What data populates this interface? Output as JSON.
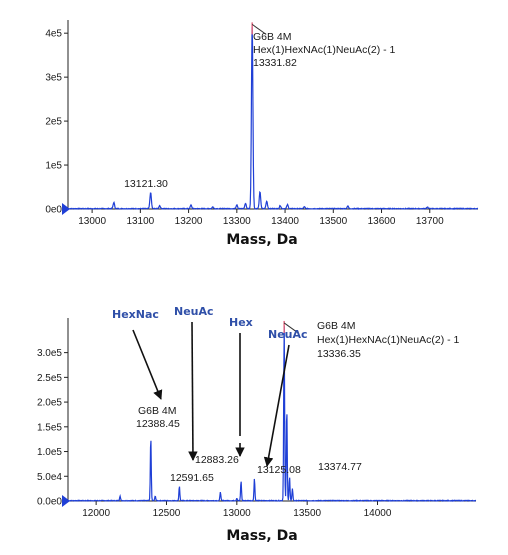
{
  "chart_data": [
    {
      "type": "line",
      "xlabel": "Mass, Da",
      "xlim": [
        12950,
        13800
      ],
      "ylim": [
        0,
        430000
      ],
      "x_ticks": [
        "13000",
        "13100",
        "13200",
        "13300",
        "13400",
        "13500",
        "13600",
        "13700"
      ],
      "y_ticks": [
        "0e0",
        "1e5",
        "2e5",
        "3e5",
        "4e5"
      ],
      "grid": false,
      "series": [
        {
          "peaks": [
            {
              "x": 13045,
              "y": 14000
            },
            {
              "x": 13121.3,
              "y": 37000
            },
            {
              "x": 13140,
              "y": 7000
            },
            {
              "x": 13205,
              "y": 8000
            },
            {
              "x": 13250,
              "y": 4000
            },
            {
              "x": 13300,
              "y": 9000
            },
            {
              "x": 13318,
              "y": 12000
            },
            {
              "x": 13331.82,
              "y": 420000
            },
            {
              "x": 13348,
              "y": 38000
            },
            {
              "x": 13362,
              "y": 17000
            },
            {
              "x": 13390,
              "y": 7000
            },
            {
              "x": 13405,
              "y": 9000
            },
            {
              "x": 13440,
              "y": 4000
            },
            {
              "x": 13530,
              "y": 6000
            },
            {
              "x": 13695,
              "y": 4000
            }
          ]
        }
      ],
      "annotations": [
        {
          "x": 13121.3,
          "lines": [
            "13121.30"
          ]
        },
        {
          "x": 13331.82,
          "lines": [
            "G6B 4M",
            "Hex(1)HexNAc(1)NeuAc(2) - 1",
            "13331.82"
          ]
        }
      ]
    },
    {
      "type": "line",
      "xlabel": "Mass, Da",
      "xlim": [
        11800,
        14700
      ],
      "ylim": [
        0,
        370000
      ],
      "x_ticks": [
        "12000",
        "12500",
        "13000",
        "13500",
        "14000"
      ],
      "y_ticks": [
        "0.0e0",
        "5.0e4",
        "1.0e5",
        "1.5e5",
        "2.0e5",
        "2.5e5",
        "3.0e5"
      ],
      "grid": false,
      "series": [
        {
          "peaks": [
            {
              "x": 12170,
              "y": 10000
            },
            {
              "x": 12388.45,
              "y": 130000
            },
            {
              "x": 12420,
              "y": 10000
            },
            {
              "x": 12591.65,
              "y": 30000
            },
            {
              "x": 12883.26,
              "y": 18000
            },
            {
              "x": 13000,
              "y": 5000
            },
            {
              "x": 13030,
              "y": 40000
            },
            {
              "x": 13125.08,
              "y": 45000
            },
            {
              "x": 13336.35,
              "y": 360000
            },
            {
              "x": 13355,
              "y": 190000
            },
            {
              "x": 13374.77,
              "y": 48000
            },
            {
              "x": 13395,
              "y": 25000
            }
          ]
        }
      ],
      "annotations": [
        {
          "x": 12388.45,
          "lines": [
            "G6B 4M",
            "12388.45"
          ]
        },
        {
          "x": 12591.65,
          "lines": [
            "12591.65"
          ]
        },
        {
          "x": 12883.26,
          "lines": [
            "12883.26"
          ]
        },
        {
          "x": 13125.08,
          "lines": [
            "13125.08"
          ]
        },
        {
          "x": 13374.77,
          "lines": [
            "13374.77"
          ]
        },
        {
          "x": 13336.35,
          "lines": [
            "G6B 4M",
            "Hex(1)HexNAc(1)NeuAc(2) - 1",
            "13336.35"
          ]
        }
      ],
      "modifications": [
        "HexNac",
        "NeuAc",
        "Hex",
        "NeuAc"
      ]
    }
  ],
  "colors": {
    "trace": "#1f3fd6",
    "apex": "#e0607a",
    "label": "#2f4fa8",
    "axis": "#222222"
  }
}
